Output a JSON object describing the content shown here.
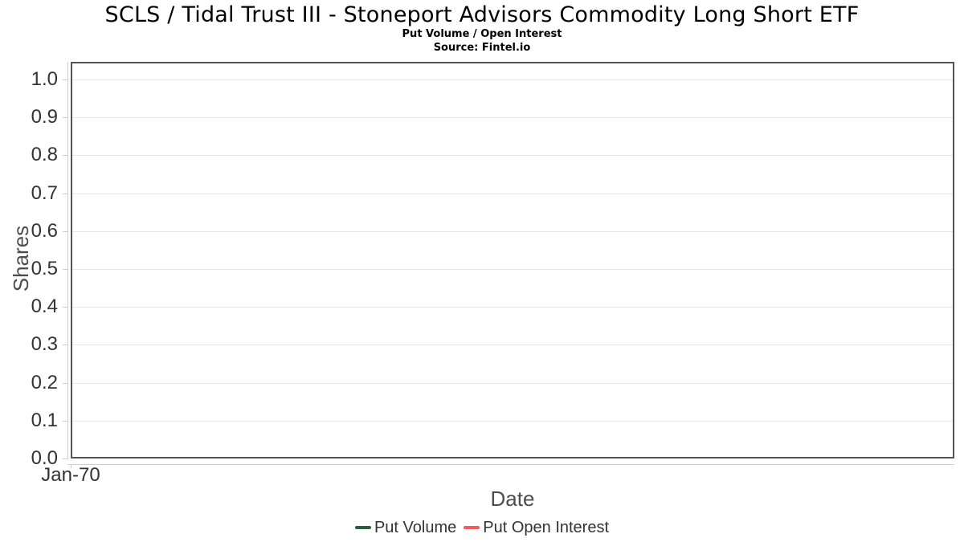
{
  "header": {
    "title": "SCLS / Tidal Trust III - Stoneport Advisors Commodity Long Short ETF",
    "subtitle": "Put Volume / Open Interest",
    "source": "Source: Fintel.io"
  },
  "chart_data": {
    "type": "line",
    "title": "SCLS / Tidal Trust III - Stoneport Advisors Commodity Long Short ETF",
    "subtitle": "Put Volume / Open Interest",
    "source": "Source: Fintel.io",
    "xlabel": "Date",
    "ylabel": "Shares",
    "ylim": [
      0.0,
      1.0
    ],
    "yticks": [
      "0.0",
      "0.1",
      "0.2",
      "0.3",
      "0.4",
      "0.5",
      "0.6",
      "0.7",
      "0.8",
      "0.9",
      "1.0"
    ],
    "xticks": [
      "Jan-70"
    ],
    "grid": true,
    "legend_position": "bottom",
    "series": [
      {
        "name": "Put Volume",
        "color": "#2d5d41",
        "values": []
      },
      {
        "name": "Put Open Interest",
        "color": "#f45b5b",
        "values": []
      }
    ]
  },
  "colors": {
    "title_text": "#000000",
    "tick_text": "#333333",
    "axis_title_text": "#4d4d4d",
    "legend_text": "#333333",
    "plot_border": "#545454",
    "axis_line": "#cdcdcd",
    "gridline": "#e8e8e8",
    "background": "#ffffff"
  }
}
